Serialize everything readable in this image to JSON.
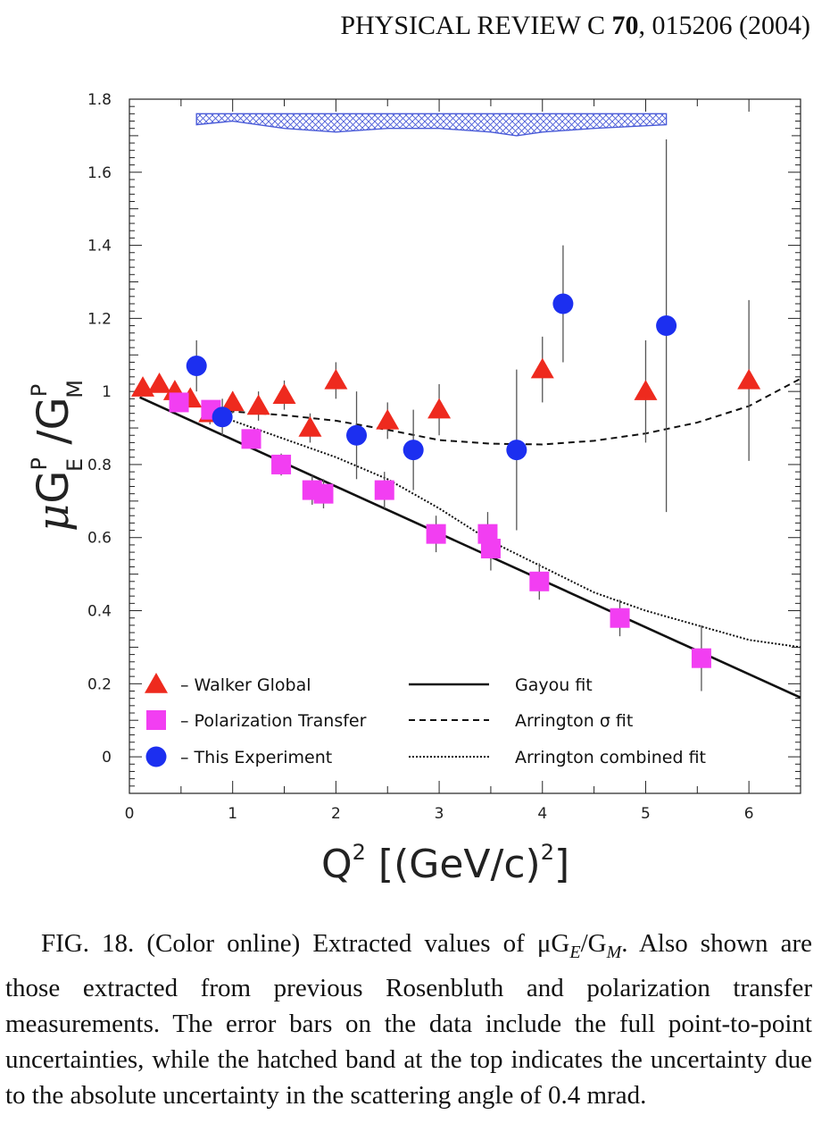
{
  "header": {
    "journal": "PHYSICAL REVIEW C",
    "volume": "70",
    "rest": ", 015206 (2004)"
  },
  "chart_data": {
    "type": "scatter",
    "xlabel": "Q² [(GeV/c)²]",
    "ylabel": "μG_E^P / G_M^P",
    "xlim": [
      0,
      6.5
    ],
    "ylim": [
      -0.1,
      1.8
    ],
    "xticks": [
      "0",
      "1",
      "2",
      "3",
      "4",
      "5",
      "6"
    ],
    "yticks": [
      "0",
      "0.2",
      "0.4",
      "0.6",
      "0.8",
      "1",
      "1.2",
      "1.4",
      "1.6",
      "1.8"
    ],
    "legend_placement": "bottom",
    "series": [
      {
        "name": "Walker Global",
        "marker": "triangle",
        "color": "#ee2a1e",
        "points": [
          {
            "x": 0.13,
            "y": 1.01,
            "err": 0.02
          },
          {
            "x": 0.29,
            "y": 1.02,
            "err": 0.02
          },
          {
            "x": 0.44,
            "y": 1.0,
            "err": 0.02
          },
          {
            "x": 0.59,
            "y": 0.98,
            "err": 0.02
          },
          {
            "x": 0.78,
            "y": 0.94,
            "err": 0.03
          },
          {
            "x": 1.0,
            "y": 0.97,
            "err": 0.03
          },
          {
            "x": 1.25,
            "y": 0.96,
            "err": 0.04
          },
          {
            "x": 1.5,
            "y": 0.99,
            "err": 0.04
          },
          {
            "x": 1.75,
            "y": 0.9,
            "err": 0.04
          },
          {
            "x": 2.0,
            "y": 1.03,
            "err": 0.05
          },
          {
            "x": 2.5,
            "y": 0.92,
            "err": 0.05
          },
          {
            "x": 3.0,
            "y": 0.95,
            "err": 0.07
          },
          {
            "x": 4.0,
            "y": 1.06,
            "err": 0.09
          },
          {
            "x": 5.0,
            "y": 1.0,
            "err": 0.14
          },
          {
            "x": 6.0,
            "y": 1.03,
            "err": 0.22
          }
        ]
      },
      {
        "name": "Polarization Transfer",
        "marker": "square",
        "color": "#f23ef2",
        "points": [
          {
            "x": 0.48,
            "y": 0.97,
            "err": 0.02
          },
          {
            "x": 0.79,
            "y": 0.95,
            "err": 0.02
          },
          {
            "x": 1.18,
            "y": 0.87,
            "err": 0.02
          },
          {
            "x": 1.47,
            "y": 0.8,
            "err": 0.03
          },
          {
            "x": 1.77,
            "y": 0.73,
            "err": 0.04
          },
          {
            "x": 1.88,
            "y": 0.72,
            "err": 0.04
          },
          {
            "x": 2.47,
            "y": 0.73,
            "err": 0.05
          },
          {
            "x": 2.97,
            "y": 0.61,
            "err": 0.05
          },
          {
            "x": 3.47,
            "y": 0.61,
            "err": 0.06
          },
          {
            "x": 3.5,
            "y": 0.57,
            "err": 0.06
          },
          {
            "x": 3.97,
            "y": 0.48,
            "err": 0.05
          },
          {
            "x": 4.75,
            "y": 0.38,
            "err": 0.05
          },
          {
            "x": 5.54,
            "y": 0.27,
            "err": 0.09
          }
        ]
      },
      {
        "name": "This Experiment",
        "marker": "circle",
        "color": "#1c2ff0",
        "points": [
          {
            "x": 0.65,
            "y": 1.07,
            "err": 0.07
          },
          {
            "x": 0.9,
            "y": 0.93,
            "err": 0.05
          },
          {
            "x": 2.2,
            "y": 0.88,
            "err": 0.12
          },
          {
            "x": 2.75,
            "y": 0.84,
            "err": 0.11
          },
          {
            "x": 3.75,
            "y": 0.84,
            "err": 0.22
          },
          {
            "x": 4.2,
            "y": 1.24,
            "err": 0.16
          },
          {
            "x": 5.2,
            "y": 1.18,
            "err": 0.51
          }
        ]
      }
    ],
    "curves": [
      {
        "name": "Gayou fit",
        "style": "solid",
        "x": [
          0.1,
          6.5
        ],
        "y": [
          0.984,
          0.162
        ]
      },
      {
        "name": "Arrington σ fit",
        "style": "dashed",
        "x": [
          0.75,
          1.0,
          1.5,
          2.0,
          2.5,
          3.0,
          3.5,
          4.0,
          4.5,
          5.0,
          5.5,
          6.0,
          6.5
        ],
        "y": [
          0.955,
          0.945,
          0.935,
          0.92,
          0.895,
          0.867,
          0.857,
          0.855,
          0.865,
          0.885,
          0.915,
          0.96,
          1.035
        ]
      },
      {
        "name": "Arrington combined fit",
        "style": "dotted",
        "x": [
          0.75,
          1.0,
          1.5,
          2.0,
          2.5,
          3.0,
          3.5,
          4.0,
          4.5,
          5.0,
          5.5,
          6.0,
          6.5
        ],
        "y": [
          0.95,
          0.92,
          0.87,
          0.82,
          0.76,
          0.68,
          0.59,
          0.52,
          0.45,
          0.4,
          0.36,
          0.32,
          0.3
        ]
      }
    ],
    "band": {
      "x": [
        0.65,
        1.0,
        1.5,
        2.0,
        2.5,
        3.0,
        3.5,
        3.75,
        4.0,
        4.5,
        5.2
      ],
      "top": [
        1.76,
        1.76,
        1.76,
        1.76,
        1.76,
        1.76,
        1.76,
        1.76,
        1.76,
        1.76,
        1.76
      ],
      "bottom": [
        1.73,
        1.74,
        1.72,
        1.71,
        1.72,
        1.72,
        1.71,
        1.7,
        1.71,
        1.72,
        1.73
      ],
      "color": "#4a5bd8"
    }
  },
  "legend": {
    "walker": "– Walker Global",
    "poltrans": "– Polarization Transfer",
    "this_exp": "– This Experiment",
    "gayou": "Gayou fit",
    "arr_sigma": "Arrington σ fit",
    "arr_comb": "Arrington combined fit"
  },
  "caption": {
    "lines": [
      "FIG. 18. (Color online) Extracted values of μG",
      "E",
      "/G",
      "M",
      ". Also shown are those extracted from previous Rosenbluth and polarization transfer measurements. The error bars on the data include the full point-to-point uncertainties, while the hatched band at the top indicates the uncertainty due to the absolute uncertainty in the scattering angle of 0.4 mrad."
    ]
  }
}
